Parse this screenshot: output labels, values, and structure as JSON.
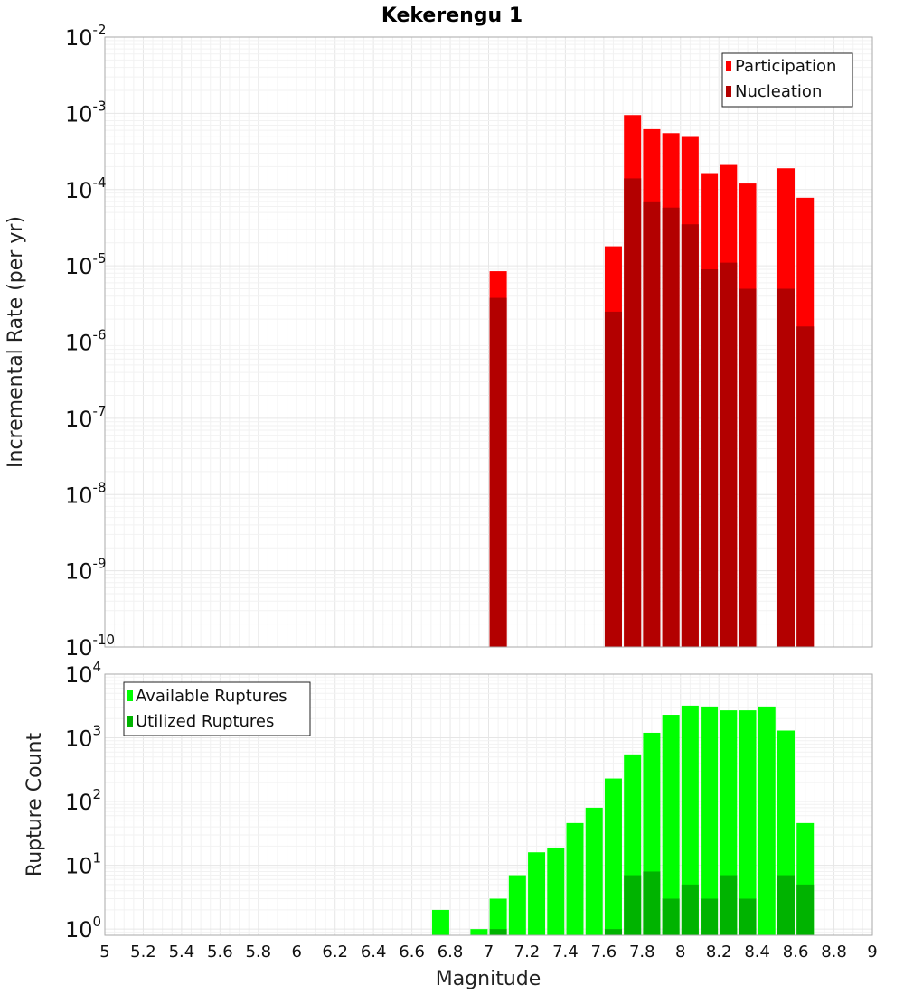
{
  "chart_data": [
    {
      "type": "bar",
      "title": "Kekerengu 1",
      "xlabel": "",
      "ylabel": "Incremental Rate (per yr)",
      "xlim": [
        5,
        9
      ],
      "ylim": [
        1e-10,
        0.01
      ],
      "yscale": "log",
      "grid": true,
      "legend_position": "top-right",
      "x": [
        7.05,
        7.65,
        7.75,
        7.85,
        7.95,
        8.05,
        8.15,
        8.25,
        8.35,
        8.55,
        8.65
      ],
      "series": [
        {
          "name": "Participation",
          "color": "#ff0000",
          "values": [
            8.5e-06,
            1.8e-05,
            0.00095,
            0.00062,
            0.00055,
            0.00049,
            0.00016,
            0.00021,
            0.00012,
            0.00019,
            7.8e-05
          ]
        },
        {
          "name": "Nucleation",
          "color": "#b30000",
          "values": [
            3.8e-06,
            2.5e-06,
            0.00014,
            7e-05,
            5.8e-05,
            3.5e-05,
            9e-06,
            1.1e-05,
            5e-06,
            5e-06,
            1.6e-06
          ]
        }
      ],
      "ytick_exponents": [
        -10,
        -9,
        -8,
        -7,
        -6,
        -5,
        -4,
        -3,
        -2
      ]
    },
    {
      "type": "bar",
      "title": "",
      "xlabel": "Magnitude",
      "ylabel": "Rupture Count",
      "xlim": [
        5,
        9
      ],
      "ylim": [
        0.8,
        10000.0
      ],
      "yscale": "log",
      "grid": true,
      "legend_position": "top-left",
      "series": [
        {
          "name": "Available Ruptures",
          "color": "#00ff00",
          "x": [
            6.75,
            6.95,
            7.05,
            7.15,
            7.25,
            7.35,
            7.45,
            7.55,
            7.65,
            7.75,
            7.85,
            7.95,
            8.05,
            8.15,
            8.25,
            8.35,
            8.45,
            8.55,
            8.65
          ],
          "values": [
            2,
            1,
            3,
            7,
            16,
            19,
            46,
            80,
            230,
            550,
            1200,
            2300,
            3200,
            3100,
            2700,
            2700,
            3100,
            1300,
            46
          ]
        },
        {
          "name": "Utilized Ruptures",
          "color": "#00b300",
          "x": [
            7.05,
            7.65,
            7.75,
            7.85,
            7.95,
            8.05,
            8.15,
            8.25,
            8.35,
            8.55,
            8.65
          ],
          "values": [
            1,
            1,
            7,
            8,
            3,
            5,
            3,
            7,
            3,
            7,
            5
          ]
        }
      ],
      "xticks": [
        "5",
        "5.2",
        "5.4",
        "5.6",
        "5.8",
        "6",
        "6.2",
        "6.4",
        "6.6",
        "6.8",
        "7",
        "7.2",
        "7.4",
        "7.6",
        "7.8",
        "8",
        "8.2",
        "8.4",
        "8.6",
        "8.8",
        "9"
      ],
      "ytick_exponents": [
        0,
        1,
        2,
        3,
        4
      ]
    }
  ]
}
